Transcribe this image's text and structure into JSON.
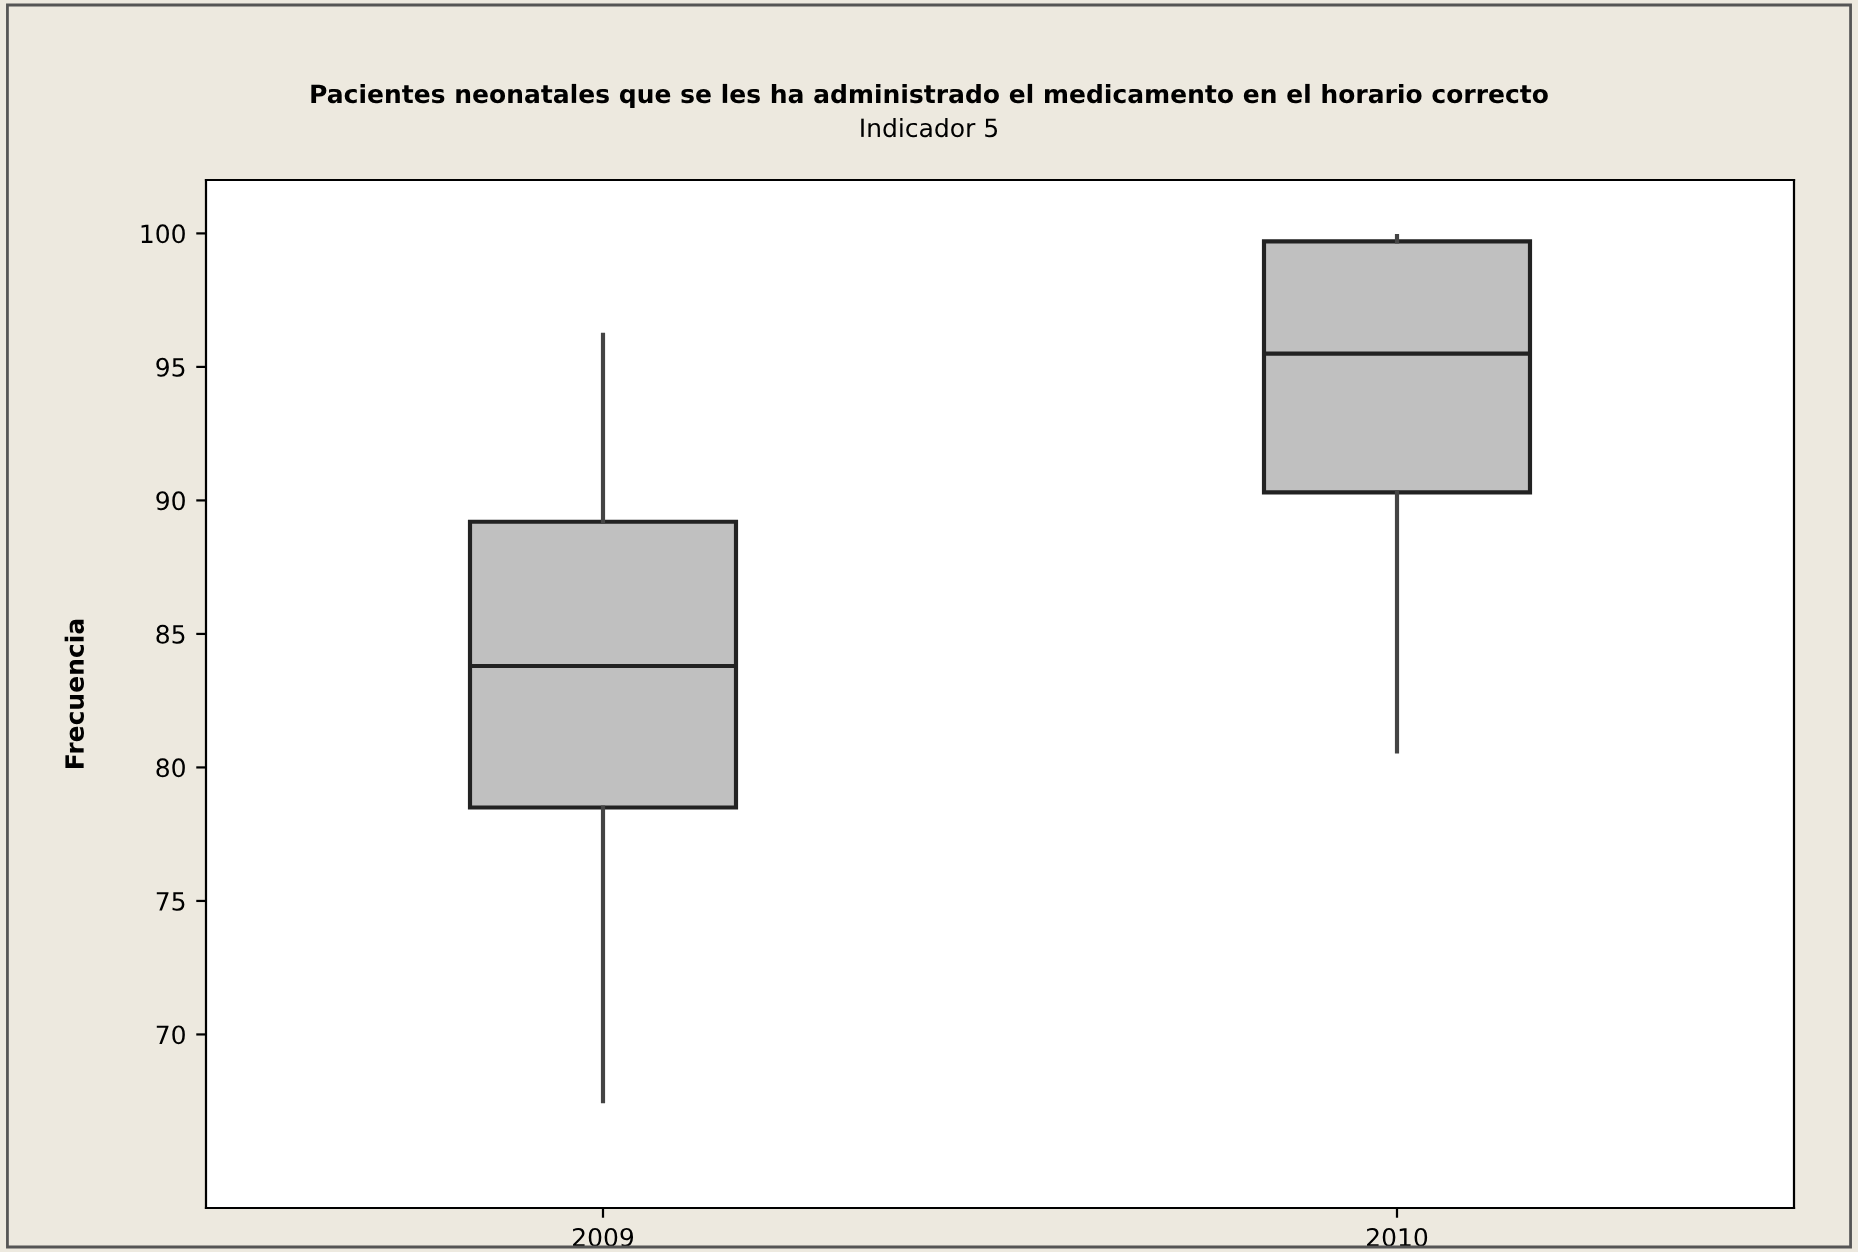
{
  "chart_data": {
    "type": "box",
    "title": "Pacientes neonatales que se les ha administrado el medicamento en el horario correcto",
    "subtitle": "Indicador 5",
    "ylabel": "Frecuencia",
    "categories": [
      "2009",
      "2010"
    ],
    "boxes": [
      {
        "low": 67.5,
        "q1": 78.5,
        "median": 83.8,
        "q3": 89.2,
        "high": 96.2
      },
      {
        "low": 80.6,
        "q1": 90.3,
        "median": 95.5,
        "q3": 99.7,
        "high": 99.9
      }
    ],
    "color": "#c0c0c0",
    "ylim": [
      63.5,
      102
    ],
    "yticks": [
      70,
      75,
      80,
      85,
      90,
      95,
      100
    ],
    "grid": false,
    "legend": false
  }
}
